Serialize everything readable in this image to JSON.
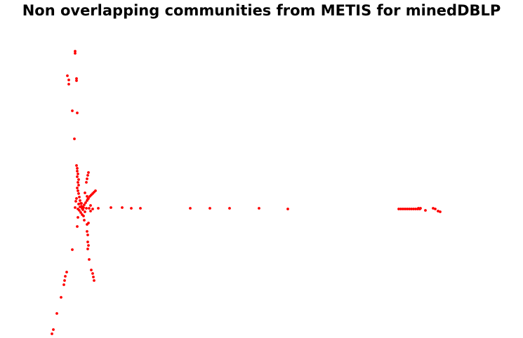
{
  "chart_data": {
    "type": "scatter",
    "title": "Non overlapping communities from METIS for minedDBLP",
    "xlabel": "",
    "ylabel": "",
    "axes_visible": false,
    "grid": false,
    "legend": "none",
    "point_color": "#ff0000",
    "series": [
      {
        "points": [
          [
            107,
            73
          ],
          [
            107,
            76
          ],
          [
            96,
            108
          ],
          [
            98,
            114
          ],
          [
            98,
            120
          ],
          [
            109,
            112
          ],
          [
            109,
            115
          ],
          [
            103,
            158
          ],
          [
            110,
            161
          ],
          [
            106,
            198
          ],
          [
            109,
            236
          ],
          [
            110,
            240
          ],
          [
            110,
            244
          ],
          [
            111,
            248
          ],
          [
            110,
            252
          ],
          [
            112,
            256
          ],
          [
            111,
            260
          ],
          [
            112,
            264
          ],
          [
            126,
            246
          ],
          [
            125,
            250
          ],
          [
            124,
            255
          ],
          [
            123,
            260
          ],
          [
            110,
            268
          ],
          [
            111,
            272
          ],
          [
            112,
            276
          ],
          [
            113,
            281
          ],
          [
            114,
            286
          ],
          [
            115,
            290
          ],
          [
            116,
            294
          ],
          [
            117,
            297
          ],
          [
            136,
            272
          ],
          [
            134,
            274
          ],
          [
            132,
            276
          ],
          [
            130,
            278
          ],
          [
            128,
            280
          ],
          [
            126,
            283
          ],
          [
            124,
            286
          ],
          [
            122,
            289
          ],
          [
            120,
            292
          ],
          [
            118,
            295
          ],
          [
            121,
            275
          ],
          [
            124,
            280
          ],
          [
            125,
            284
          ],
          [
            109,
            283
          ],
          [
            108,
            287
          ],
          [
            112,
            291
          ],
          [
            114,
            295
          ],
          [
            113,
            300
          ],
          [
            118,
            299
          ],
          [
            121,
            302
          ],
          [
            117,
            306
          ],
          [
            115,
            303
          ],
          [
            119,
            296
          ],
          [
            116,
            290
          ],
          [
            107,
            296
          ],
          [
            111,
            298
          ],
          [
            123,
            297
          ],
          [
            129,
            293
          ],
          [
            127,
            297
          ],
          [
            132,
            298
          ],
          [
            129,
            301
          ],
          [
            119,
            308
          ],
          [
            120,
            314
          ],
          [
            111,
            310
          ],
          [
            110,
            323
          ],
          [
            124,
            320
          ],
          [
            126,
            318
          ],
          [
            140,
            297
          ],
          [
            158,
            296
          ],
          [
            174,
            296
          ],
          [
            187,
            297
          ],
          [
            200,
            297
          ],
          [
            271,
            297
          ],
          [
            299,
            297
          ],
          [
            327,
            297
          ],
          [
            369,
            297
          ],
          [
            410,
            298
          ],
          [
            568,
            298
          ],
          [
            571,
            298
          ],
          [
            574,
            298
          ],
          [
            577,
            298
          ],
          [
            580,
            298
          ],
          [
            583,
            298
          ],
          [
            586,
            298
          ],
          [
            589,
            298
          ],
          [
            592,
            298
          ],
          [
            595,
            298
          ],
          [
            598,
            298
          ],
          [
            596,
            297
          ],
          [
            599,
            297
          ],
          [
            617,
            297
          ],
          [
            620,
            298
          ],
          [
            606,
            300
          ],
          [
            624,
            301
          ],
          [
            627,
            302
          ],
          [
            124,
            330
          ],
          [
            125,
            335
          ],
          [
            125,
            345
          ],
          [
            126,
            350
          ],
          [
            125,
            355
          ],
          [
            103,
            356
          ],
          [
            127,
            370
          ],
          [
            130,
            385
          ],
          [
            132,
            390
          ],
          [
            133,
            395
          ],
          [
            134,
            400
          ],
          [
            95,
            388
          ],
          [
            93,
            394
          ],
          [
            92,
            400
          ],
          [
            91,
            406
          ],
          [
            87,
            424
          ],
          [
            81,
            447
          ],
          [
            76,
            470
          ],
          [
            74,
            476
          ]
        ]
      }
    ]
  }
}
